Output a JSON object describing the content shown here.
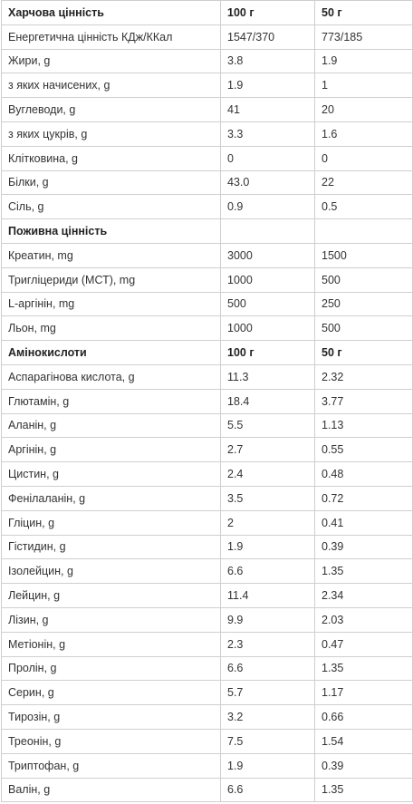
{
  "table": {
    "sections": [
      {
        "header": [
          "Харчова цінність",
          "100 г",
          "50 г"
        ],
        "rows": [
          [
            "Енергетична цінність КДж/ККал",
            "1547/370",
            "773/185"
          ],
          [
            "Жири, g",
            "3.8",
            "1.9"
          ],
          [
            "з яких начисених, g",
            "1.9",
            "1"
          ],
          [
            "Вуглеводи, g",
            "41",
            "20"
          ],
          [
            "з яких цукрів, g",
            "3.3",
            "1.6"
          ],
          [
            "Клітковина, g",
            "0",
            "0"
          ],
          [
            "Білки, g",
            "43.0",
            "22"
          ],
          [
            "Сіль, g",
            "0.9",
            "0.5"
          ]
        ]
      },
      {
        "header": [
          "Поживна цінність"
        ],
        "rows": [
          [
            "Креатин, mg",
            "3000",
            "1500"
          ],
          [
            "Тригліцериди (МСТ), mg",
            "1000",
            "500"
          ],
          [
            "L-аргінін, mg",
            "500",
            "250"
          ],
          [
            "Льон, mg",
            "1000",
            "500"
          ]
        ]
      },
      {
        "header": [
          "Амінокислоти",
          "100 г",
          "50 г"
        ],
        "rows": [
          [
            "Аспарагінова кислота, g",
            "11.3",
            "2.32"
          ],
          [
            "Глютамін, g",
            "18.4",
            "3.77"
          ],
          [
            "Аланін, g",
            "5.5",
            "1.13"
          ],
          [
            "Аргінін, g",
            "2.7",
            "0.55"
          ],
          [
            "Цистин, g",
            "2.4",
            "0.48"
          ],
          [
            "Фенілаланін, g",
            "3.5",
            "0.72"
          ],
          [
            "Гліцин, g",
            "2",
            "0.41"
          ],
          [
            "Гістидин, g",
            "1.9",
            "0.39"
          ],
          [
            "Ізолейцин, g",
            "6.6",
            "1.35"
          ],
          [
            "Лейцин, g",
            "11.4",
            "2.34"
          ],
          [
            "Лізин, g",
            "9.9",
            "2.03"
          ],
          [
            "Метіонін, g",
            "2.3",
            "0.47"
          ],
          [
            "Пролін, g",
            "6.6",
            "1.35"
          ],
          [
            "Серин, g",
            "5.7",
            "1.17"
          ],
          [
            "Тирозін, g",
            "3.2",
            "0.66"
          ],
          [
            "Треонін, g",
            "7.5",
            "1.54"
          ],
          [
            "Триптофан, g",
            "1.9",
            "0.39"
          ],
          [
            "Валін, g",
            "6.6",
            "1.35"
          ]
        ]
      }
    ]
  }
}
